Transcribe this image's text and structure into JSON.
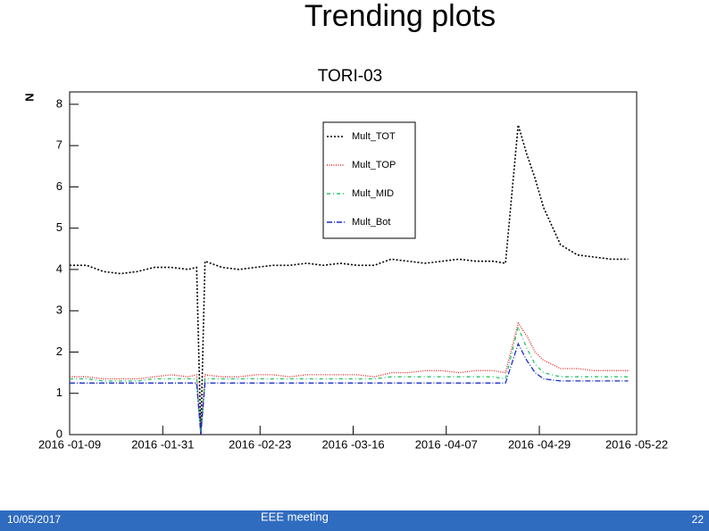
{
  "slide_title": "Trending plots",
  "footer": {
    "date": "10/05/2017",
    "event": "EEE meeting",
    "page": "22"
  },
  "chart_data": {
    "type": "line",
    "title": "TORI-03",
    "y_label": "N",
    "x": [
      "2016-01-09",
      "2016-01-13",
      "2016-01-17",
      "2016-01-21",
      "2016-01-25",
      "2016-01-29",
      "2016-02-02",
      "2016-02-06",
      "2016-02-08",
      "2016-02-09",
      "2016-02-10",
      "2016-02-14",
      "2016-02-18",
      "2016-02-22",
      "2016-02-26",
      "2016-03-01",
      "2016-03-05",
      "2016-03-09",
      "2016-03-13",
      "2016-03-17",
      "2016-03-21",
      "2016-03-25",
      "2016-03-29",
      "2016-04-02",
      "2016-04-06",
      "2016-04-10",
      "2016-04-14",
      "2016-04-18",
      "2016-04-21",
      "2016-04-24",
      "2016-04-26",
      "2016-04-28",
      "2016-04-30",
      "2016-05-04",
      "2016-05-08",
      "2016-05-12",
      "2016-05-16",
      "2016-05-20"
    ],
    "series": [
      {
        "name": "Mult_TOT",
        "color": "#000000",
        "dash": "2,2",
        "values": [
          4.1,
          4.1,
          3.95,
          3.9,
          3.95,
          4.05,
          4.05,
          4.0,
          4.05,
          0,
          4.2,
          4.05,
          4.0,
          4.05,
          4.1,
          4.1,
          4.15,
          4.1,
          4.15,
          4.1,
          4.1,
          4.25,
          4.2,
          4.15,
          4.2,
          4.25,
          4.2,
          4.2,
          4.15,
          7.5,
          6.8,
          6.2,
          5.5,
          4.6,
          4.35,
          4.3,
          4.25,
          4.25
        ]
      },
      {
        "name": "Mult_TOP",
        "color": "#e0201c",
        "dash": "1,1.5",
        "values": [
          1.4,
          1.4,
          1.35,
          1.35,
          1.35,
          1.4,
          1.45,
          1.4,
          1.45,
          0,
          1.45,
          1.4,
          1.4,
          1.45,
          1.45,
          1.4,
          1.45,
          1.45,
          1.45,
          1.45,
          1.4,
          1.5,
          1.5,
          1.55,
          1.55,
          1.5,
          1.55,
          1.55,
          1.5,
          2.7,
          2.4,
          2.0,
          1.8,
          1.6,
          1.6,
          1.55,
          1.55,
          1.55
        ]
      },
      {
        "name": "Mult_MID",
        "color": "#22c46a",
        "dash": "4,3,1,3",
        "values": [
          1.35,
          1.35,
          1.3,
          1.3,
          1.3,
          1.35,
          1.35,
          1.35,
          1.35,
          0,
          1.35,
          1.35,
          1.35,
          1.35,
          1.35,
          1.35,
          1.35,
          1.35,
          1.35,
          1.35,
          1.35,
          1.4,
          1.4,
          1.4,
          1.4,
          1.4,
          1.4,
          1.4,
          1.35,
          2.6,
          2.1,
          1.7,
          1.5,
          1.4,
          1.4,
          1.4,
          1.4,
          1.4
        ]
      },
      {
        "name": "Mult_Bot",
        "color": "#1a2ccc",
        "dash": "6,2,1,2",
        "values": [
          1.25,
          1.25,
          1.25,
          1.25,
          1.25,
          1.25,
          1.25,
          1.25,
          1.25,
          0,
          1.25,
          1.25,
          1.25,
          1.25,
          1.25,
          1.25,
          1.25,
          1.25,
          1.25,
          1.25,
          1.25,
          1.25,
          1.25,
          1.25,
          1.25,
          1.25,
          1.25,
          1.25,
          1.25,
          2.2,
          1.8,
          1.5,
          1.35,
          1.3,
          1.3,
          1.3,
          1.3,
          1.3
        ]
      }
    ],
    "xlim": [
      "2016-01-09",
      "2016-05-22"
    ],
    "xticks": [
      {
        "value": "2016-01-09",
        "label": "2016 -01-09"
      },
      {
        "value": "2016-01-31",
        "label": "2016 -01-31"
      },
      {
        "value": "2016-02-23",
        "label": "2016 -02-23"
      },
      {
        "value": "2016-03-16",
        "label": "2016 -03-16"
      },
      {
        "value": "2016-04-07",
        "label": "2016 -04-07"
      },
      {
        "value": "2016-04-29",
        "label": "2016 -04-29"
      },
      {
        "value": "2016-05-22",
        "label": "2016 -05-22"
      }
    ],
    "ylim": [
      0,
      8.3
    ],
    "yticks": [
      0,
      1,
      2,
      3,
      4,
      5,
      6,
      7,
      8
    ]
  }
}
